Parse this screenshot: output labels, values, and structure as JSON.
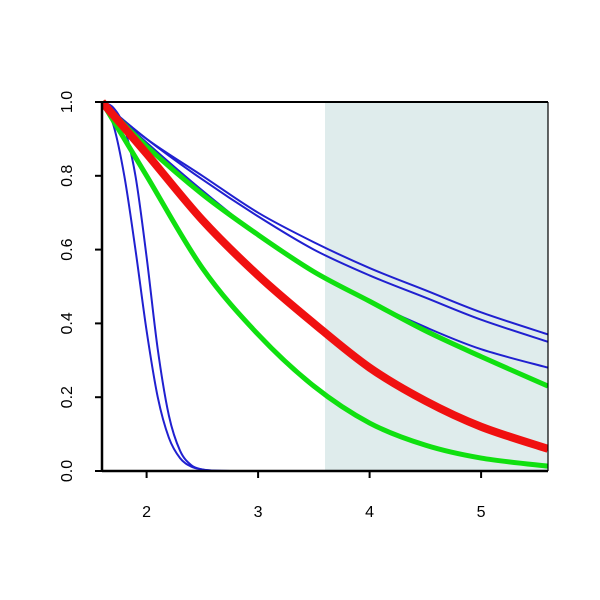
{
  "chart_data": {
    "type": "line",
    "title": "",
    "xlabel": "",
    "ylabel": "",
    "xlim": [
      1.6,
      5.6
    ],
    "ylim": [
      0,
      1
    ],
    "x_ticks": [
      2,
      3,
      4,
      5
    ],
    "x_tick_labels": [
      "2",
      "3",
      "4",
      "5"
    ],
    "y_ticks": [
      0,
      0.2,
      0.4,
      0.6,
      0.8,
      1.0
    ],
    "y_tick_labels": [
      "0.0",
      "0.2",
      "0.4",
      "0.6",
      "0.8",
      "1.0"
    ],
    "grid": false,
    "shaded_region": {
      "x_start": 3.6,
      "x_end": 5.6,
      "color": "#dfecec"
    },
    "series": [
      {
        "color": "#2020d0",
        "width": "thin",
        "x": [
          1.6,
          1.7,
          1.8,
          1.9,
          2.0,
          2.1,
          2.2,
          2.3,
          2.4,
          2.5,
          2.6,
          2.8,
          3.0,
          5.6
        ],
        "values": [
          1.0,
          0.94,
          0.8,
          0.6,
          0.38,
          0.2,
          0.09,
          0.035,
          0.012,
          0.004,
          0.001,
          0.0,
          0.0,
          0.0
        ]
      },
      {
        "color": "#2020d0",
        "width": "thin",
        "x": [
          1.6,
          1.7,
          1.8,
          1.9,
          2.0,
          2.1,
          2.2,
          2.3,
          2.4,
          2.5,
          2.6,
          2.8,
          3.0,
          5.6
        ],
        "values": [
          1.0,
          0.985,
          0.93,
          0.8,
          0.58,
          0.33,
          0.15,
          0.055,
          0.016,
          0.004,
          0.001,
          0.0,
          0.0,
          0.0
        ]
      },
      {
        "color": "#2020d0",
        "width": "thin",
        "x": [
          1.6,
          2.0,
          2.5,
          3.0,
          3.5,
          4.0,
          4.5,
          5.0,
          5.6
        ],
        "values": [
          1.0,
          0.89,
          0.76,
          0.64,
          0.54,
          0.46,
          0.39,
          0.33,
          0.28
        ]
      },
      {
        "color": "#2020d0",
        "width": "thin",
        "x": [
          1.6,
          2.0,
          2.5,
          3.0,
          3.5,
          4.0,
          4.5,
          5.0,
          5.6
        ],
        "values": [
          1.0,
          0.9,
          0.79,
          0.69,
          0.6,
          0.53,
          0.47,
          0.41,
          0.35
        ]
      },
      {
        "color": "#2020d0",
        "width": "thin",
        "x": [
          1.6,
          2.0,
          2.5,
          3.0,
          3.5,
          4.0,
          4.5,
          5.0,
          5.6
        ],
        "values": [
          1.0,
          0.9,
          0.8,
          0.7,
          0.62,
          0.55,
          0.49,
          0.43,
          0.37
        ]
      },
      {
        "color": "#10e010",
        "width": "thick",
        "x": [
          1.6,
          2.0,
          2.5,
          3.0,
          3.5,
          4.0,
          4.5,
          5.0,
          5.6
        ],
        "values": [
          1.0,
          0.88,
          0.75,
          0.64,
          0.54,
          0.46,
          0.38,
          0.31,
          0.23
        ]
      },
      {
        "color": "#f01010",
        "width": "extra-thick",
        "x": [
          1.6,
          2.0,
          2.5,
          3.0,
          3.5,
          4.0,
          4.5,
          5.0,
          5.6
        ],
        "values": [
          1.0,
          0.86,
          0.68,
          0.53,
          0.4,
          0.28,
          0.19,
          0.12,
          0.06
        ]
      },
      {
        "color": "#10e010",
        "width": "thick",
        "x": [
          1.6,
          2.0,
          2.5,
          3.0,
          3.5,
          4.0,
          4.5,
          5.0,
          5.6
        ],
        "values": [
          1.0,
          0.8,
          0.55,
          0.37,
          0.23,
          0.13,
          0.07,
          0.035,
          0.013
        ]
      }
    ]
  }
}
